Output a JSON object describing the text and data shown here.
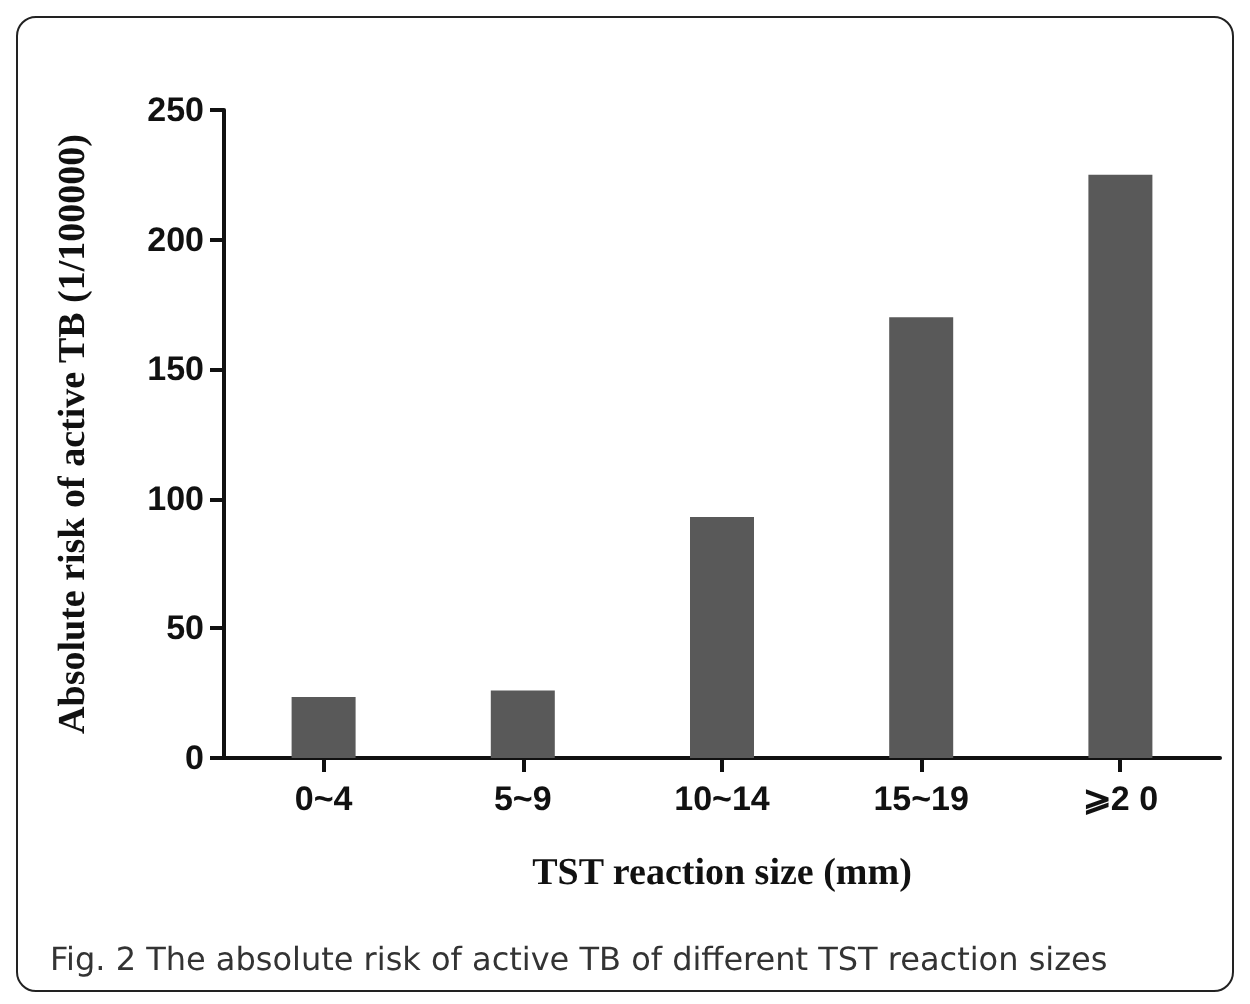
{
  "chart_data": {
    "type": "bar",
    "xlabel": "TST reaction size (mm)",
    "ylabel": "Absolute risk of active TB (1/100000)",
    "categories": [
      "0~4",
      "5~9",
      "10~14",
      "15~19",
      "⩾2 0"
    ],
    "values": [
      23.5,
      26,
      93,
      170,
      225
    ],
    "color": "#595959",
    "ylim": [
      0,
      250
    ],
    "yticks": [
      0,
      50,
      100,
      150,
      200,
      250
    ],
    "grid": false,
    "annotations": [
      "Fig. 2 The absolute risk of active TB of different TST reaction sizes"
    ]
  }
}
